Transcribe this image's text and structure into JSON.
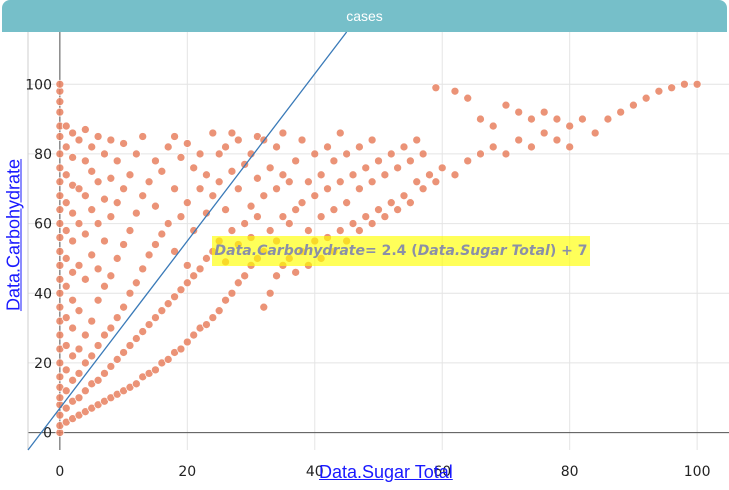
{
  "window": {
    "title": "cases"
  },
  "chart_data": {
    "type": "scatter",
    "xlabel": "Data.Sugar Total",
    "ylabel": "Data.Carbohydrate",
    "xlim": [
      -5,
      105
    ],
    "ylim": [
      -5,
      115
    ],
    "x_ticks": [
      0,
      20,
      40,
      60,
      80,
      100
    ],
    "y_ticks": [
      0,
      20,
      40,
      60,
      80,
      100
    ],
    "grid": true,
    "point_color": "#e8805f",
    "line_color": "#3a7ab8",
    "regression": {
      "slope": 2.4,
      "intercept": 7,
      "label_y": "Data.Carbohydrate",
      "label_eq": "= 2.4 (",
      "label_x": "Data.Sugar Total",
      "label_tail": ") + 7"
    },
    "points": [
      [
        0,
        0
      ],
      [
        0,
        2
      ],
      [
        0,
        5
      ],
      [
        0,
        8
      ],
      [
        0,
        10
      ],
      [
        0,
        13
      ],
      [
        0,
        16
      ],
      [
        0,
        20
      ],
      [
        0,
        24
      ],
      [
        0,
        28
      ],
      [
        0,
        32
      ],
      [
        0,
        36
      ],
      [
        0,
        40
      ],
      [
        0,
        44
      ],
      [
        0,
        48
      ],
      [
        0,
        52
      ],
      [
        0,
        56
      ],
      [
        0,
        60
      ],
      [
        0,
        64
      ],
      [
        0,
        68
      ],
      [
        0,
        72
      ],
      [
        0,
        76
      ],
      [
        0,
        80
      ],
      [
        0,
        85
      ],
      [
        0,
        88
      ],
      [
        0,
        92
      ],
      [
        0,
        95
      ],
      [
        0,
        98
      ],
      [
        0,
        100
      ],
      [
        1,
        3
      ],
      [
        1,
        7
      ],
      [
        1,
        12
      ],
      [
        1,
        18
      ],
      [
        1,
        25
      ],
      [
        1,
        33
      ],
      [
        1,
        42
      ],
      [
        1,
        50
      ],
      [
        1,
        58
      ],
      [
        1,
        66
      ],
      [
        1,
        74
      ],
      [
        1,
        82
      ],
      [
        1,
        88
      ],
      [
        2,
        4
      ],
      [
        2,
        9
      ],
      [
        2,
        15
      ],
      [
        2,
        22
      ],
      [
        2,
        30
      ],
      [
        2,
        38
      ],
      [
        2,
        46
      ],
      [
        2,
        55
      ],
      [
        2,
        63
      ],
      [
        2,
        71
      ],
      [
        2,
        79
      ],
      [
        2,
        86
      ],
      [
        3,
        5
      ],
      [
        3,
        10
      ],
      [
        3,
        17
      ],
      [
        3,
        24
      ],
      [
        3,
        35
      ],
      [
        3,
        48
      ],
      [
        3,
        60
      ],
      [
        3,
        70
      ],
      [
        3,
        84
      ],
      [
        4,
        6
      ],
      [
        4,
        12
      ],
      [
        4,
        20
      ],
      [
        4,
        28
      ],
      [
        4,
        44
      ],
      [
        4,
        57
      ],
      [
        4,
        68
      ],
      [
        4,
        78
      ],
      [
        4,
        87
      ],
      [
        5,
        7
      ],
      [
        5,
        14
      ],
      [
        5,
        22
      ],
      [
        5,
        32
      ],
      [
        5,
        51
      ],
      [
        5,
        64
      ],
      [
        5,
        75
      ],
      [
        5,
        82
      ],
      [
        6,
        8
      ],
      [
        6,
        15
      ],
      [
        6,
        25
      ],
      [
        6,
        38
      ],
      [
        6,
        47
      ],
      [
        6,
        60
      ],
      [
        6,
        72
      ],
      [
        6,
        85
      ],
      [
        7,
        9
      ],
      [
        7,
        17
      ],
      [
        7,
        28
      ],
      [
        7,
        42
      ],
      [
        7,
        55
      ],
      [
        7,
        67
      ],
      [
        7,
        80
      ],
      [
        8,
        10
      ],
      [
        8,
        19
      ],
      [
        8,
        30
      ],
      [
        8,
        45
      ],
      [
        8,
        62
      ],
      [
        8,
        73
      ],
      [
        8,
        84
      ],
      [
        9,
        11
      ],
      [
        9,
        21
      ],
      [
        9,
        33
      ],
      [
        9,
        50
      ],
      [
        9,
        66
      ],
      [
        9,
        78
      ],
      [
        10,
        12
      ],
      [
        10,
        23
      ],
      [
        10,
        36
      ],
      [
        10,
        54
      ],
      [
        10,
        70
      ],
      [
        10,
        83
      ],
      [
        11,
        13
      ],
      [
        11,
        25
      ],
      [
        11,
        40
      ],
      [
        11,
        58
      ],
      [
        11,
        74
      ],
      [
        12,
        14
      ],
      [
        12,
        27
      ],
      [
        12,
        43
      ],
      [
        12,
        63
      ],
      [
        12,
        80
      ],
      [
        13,
        16
      ],
      [
        13,
        29
      ],
      [
        13,
        47
      ],
      [
        13,
        68
      ],
      [
        13,
        85
      ],
      [
        14,
        17
      ],
      [
        14,
        31
      ],
      [
        14,
        51
      ],
      [
        14,
        72
      ],
      [
        15,
        18
      ],
      [
        15,
        33
      ],
      [
        15,
        54
      ],
      [
        15,
        65
      ],
      [
        15,
        78
      ],
      [
        16,
        20
      ],
      [
        16,
        35
      ],
      [
        16,
        57
      ],
      [
        16,
        75
      ],
      [
        17,
        21
      ],
      [
        17,
        37
      ],
      [
        17,
        60
      ],
      [
        17,
        82
      ],
      [
        18,
        23
      ],
      [
        18,
        39
      ],
      [
        18,
        52
      ],
      [
        18,
        70
      ],
      [
        18,
        85
      ],
      [
        19,
        24
      ],
      [
        19,
        41
      ],
      [
        19,
        62
      ],
      [
        19,
        79
      ],
      [
        20,
        26
      ],
      [
        20,
        43
      ],
      [
        20,
        48
      ],
      [
        20,
        66
      ],
      [
        20,
        83
      ],
      [
        21,
        28
      ],
      [
        21,
        45
      ],
      [
        21,
        58
      ],
      [
        21,
        76
      ],
      [
        22,
        30
      ],
      [
        22,
        47
      ],
      [
        22,
        70
      ],
      [
        22,
        80
      ],
      [
        23,
        31
      ],
      [
        23,
        50
      ],
      [
        23,
        63
      ],
      [
        23,
        74
      ],
      [
        24,
        33
      ],
      [
        24,
        52
      ],
      [
        24,
        68
      ],
      [
        24,
        86
      ],
      [
        25,
        35
      ],
      [
        25,
        55
      ],
      [
        25,
        72
      ],
      [
        25,
        80
      ],
      [
        26,
        38
      ],
      [
        26,
        49
      ],
      [
        26,
        64
      ],
      [
        26,
        82
      ],
      [
        27,
        40
      ],
      [
        27,
        58
      ],
      [
        27,
        75
      ],
      [
        27,
        86
      ],
      [
        28,
        43
      ],
      [
        28,
        54
      ],
      [
        28,
        70
      ],
      [
        28,
        84
      ],
      [
        29,
        45
      ],
      [
        29,
        60
      ],
      [
        29,
        77
      ],
      [
        30,
        48
      ],
      [
        30,
        56
      ],
      [
        30,
        65
      ],
      [
        30,
        80
      ],
      [
        31,
        50
      ],
      [
        31,
        62
      ],
      [
        31,
        73
      ],
      [
        31,
        85
      ],
      [
        32,
        36
      ],
      [
        32,
        52
      ],
      [
        32,
        68
      ],
      [
        32,
        84
      ],
      [
        33,
        40
      ],
      [
        33,
        58
      ],
      [
        33,
        76
      ],
      [
        34,
        45
      ],
      [
        34,
        55
      ],
      [
        34,
        70
      ],
      [
        34,
        82
      ],
      [
        35,
        48
      ],
      [
        35,
        62
      ],
      [
        35,
        74
      ],
      [
        35,
        86
      ],
      [
        36,
        50
      ],
      [
        36,
        60
      ],
      [
        36,
        72
      ],
      [
        37,
        46
      ],
      [
        37,
        64
      ],
      [
        37,
        78
      ],
      [
        38,
        52
      ],
      [
        38,
        66
      ],
      [
        38,
        84
      ],
      [
        39,
        48
      ],
      [
        39,
        58
      ],
      [
        39,
        72
      ],
      [
        40,
        55
      ],
      [
        40,
        68
      ],
      [
        40,
        80
      ],
      [
        41,
        50
      ],
      [
        41,
        62
      ],
      [
        41,
        74
      ],
      [
        42,
        56
      ],
      [
        42,
        70
      ],
      [
        42,
        82
      ],
      [
        43,
        52
      ],
      [
        43,
        64
      ],
      [
        43,
        78
      ],
      [
        44,
        58
      ],
      [
        44,
        72
      ],
      [
        44,
        86
      ],
      [
        45,
        55
      ],
      [
        45,
        66
      ],
      [
        45,
        80
      ],
      [
        46,
        60
      ],
      [
        46,
        74
      ],
      [
        47,
        58
      ],
      [
        47,
        70
      ],
      [
        47,
        82
      ],
      [
        48,
        62
      ],
      [
        48,
        76
      ],
      [
        49,
        60
      ],
      [
        49,
        72
      ],
      [
        49,
        84
      ],
      [
        50,
        64
      ],
      [
        50,
        78
      ],
      [
        51,
        62
      ],
      [
        51,
        74
      ],
      [
        52,
        66
      ],
      [
        52,
        80
      ],
      [
        53,
        64
      ],
      [
        53,
        76
      ],
      [
        54,
        68
      ],
      [
        54,
        82
      ],
      [
        55,
        66
      ],
      [
        55,
        78
      ],
      [
        56,
        72
      ],
      [
        56,
        84
      ],
      [
        57,
        70
      ],
      [
        57,
        80
      ],
      [
        58,
        74
      ],
      [
        59,
        72
      ],
      [
        59,
        99
      ],
      [
        60,
        76
      ],
      [
        62,
        74
      ],
      [
        62,
        98
      ],
      [
        64,
        78
      ],
      [
        64,
        96
      ],
      [
        66,
        80
      ],
      [
        66,
        90
      ],
      [
        68,
        82
      ],
      [
        68,
        88
      ],
      [
        70,
        80
      ],
      [
        70,
        94
      ],
      [
        72,
        84
      ],
      [
        72,
        92
      ],
      [
        74,
        82
      ],
      [
        74,
        90
      ],
      [
        76,
        86
      ],
      [
        76,
        92
      ],
      [
        78,
        84
      ],
      [
        78,
        90
      ],
      [
        80,
        82
      ],
      [
        80,
        88
      ],
      [
        82,
        90
      ],
      [
        84,
        86
      ],
      [
        86,
        90
      ],
      [
        88,
        92
      ],
      [
        90,
        94
      ],
      [
        92,
        96
      ],
      [
        94,
        98
      ],
      [
        96,
        99
      ],
      [
        98,
        100
      ],
      [
        100,
        100
      ]
    ]
  }
}
